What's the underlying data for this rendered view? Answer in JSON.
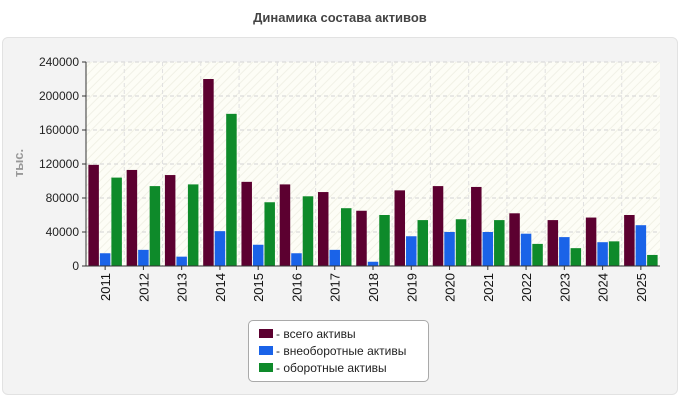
{
  "chart_data": {
    "type": "bar",
    "title": "Динамика состава активов",
    "ylabel": "тыс.",
    "xlabel": "",
    "ylim": [
      0,
      240000
    ],
    "yticks": [
      0,
      40000,
      80000,
      120000,
      160000,
      200000,
      240000
    ],
    "grid": true,
    "legend_position": "bottom",
    "categories": [
      "2011",
      "2012",
      "2013",
      "2014",
      "2015",
      "2016",
      "2017",
      "2018",
      "2019",
      "2020",
      "2021",
      "2022",
      "2023",
      "2024",
      "2025"
    ],
    "series": [
      {
        "name": "- всего активы",
        "color": "#5c0030",
        "values": [
          119000,
          113000,
          107000,
          220000,
          99000,
          96000,
          87000,
          65000,
          89000,
          94000,
          93000,
          62000,
          54000,
          57000,
          60000
        ]
      },
      {
        "name": "- внеоборотные активы",
        "color": "#1a63e8",
        "values": [
          15000,
          19000,
          11000,
          41000,
          25000,
          15000,
          19000,
          5000,
          35000,
          40000,
          40000,
          38000,
          34000,
          28000,
          48000
        ]
      },
      {
        "name": "- оборотные активы",
        "color": "#0e8a2a",
        "values": [
          104000,
          94000,
          96000,
          179000,
          75000,
          82000,
          68000,
          60000,
          54000,
          55000,
          54000,
          26000,
          21000,
          29000,
          13000
        ]
      }
    ]
  }
}
